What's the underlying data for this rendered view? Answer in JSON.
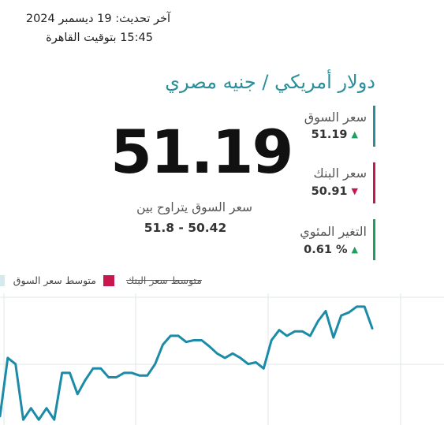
{
  "header": {
    "updated_line1": "آخر تحديث: 19 ديسمبر 2024",
    "updated_line2": "15:45 بتوقيت القاهرة",
    "pair_title": "دولار أمريكي / جنيه مصري"
  },
  "price": {
    "big_value": "51.19",
    "range_label": "سعر السوق يتراوح بين",
    "range_value": "51.8 - 50.42"
  },
  "stats": {
    "market": {
      "label": "سعر السوق",
      "value": "51.19",
      "direction": "up",
      "color": "#2a8f9a"
    },
    "bank": {
      "label": "سعر البنك",
      "value": "50.91",
      "direction": "down",
      "color": "#c8174e"
    },
    "change": {
      "label": "التغير المئوي",
      "value": "0.61 %",
      "direction": "up",
      "color": "#1e9e60"
    }
  },
  "legend": {
    "market_avg": "متوسط سعر السوق",
    "bank_avg": "متوسط سعر البنك",
    "bank_color": "#c8174e",
    "market_color": "#d6e9ef",
    "line_color": "#1b8ba7"
  },
  "chart_data": {
    "type": "line",
    "series": [
      {
        "name": "متوسط سعر السوق",
        "values": [
          49.2,
          50.52,
          50.38,
          49.12,
          49.38,
          49.12,
          49.38,
          49.12,
          50.18,
          50.18,
          49.7,
          50.02,
          50.28,
          50.28,
          50.08,
          50.08,
          50.18,
          50.18,
          50.12,
          50.12,
          50.38,
          50.82,
          51.02,
          51.02,
          50.88,
          50.92,
          50.92,
          50.78,
          50.62,
          50.52,
          50.62,
          50.52,
          50.38,
          50.42,
          50.28,
          50.92,
          51.15,
          51.02,
          51.12,
          51.12,
          51.02,
          51.35,
          51.58,
          50.98,
          51.48,
          51.55,
          51.68,
          51.68,
          51.19
        ]
      }
    ]
  }
}
